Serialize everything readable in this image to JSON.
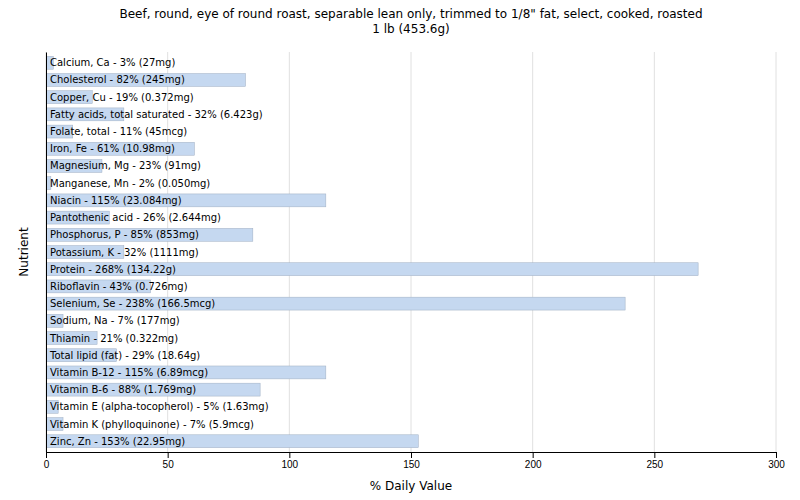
{
  "chart_data": {
    "type": "bar",
    "orientation": "horizontal",
    "title": "Beef, round, eye of round roast, separable lean only, trimmed to 1/8\" fat, select, cooked, roasted\n1 lb (453.6g)",
    "x_label": "% Daily Value",
    "y_label": "Nutrient",
    "categories": [
      "Calcium, Ca - 3% (27mg)",
      "Cholesterol - 82% (245mg)",
      "Copper, Cu - 19% (0.372mg)",
      "Fatty acids, total saturated - 32% (6.423g)",
      "Folate, total - 11% (45mcg)",
      "Iron, Fe - 61% (10.98mg)",
      "Magnesium, Mg - 23% (91mg)",
      "Manganese, Mn - 2% (0.050mg)",
      "Niacin - 115% (23.084mg)",
      "Pantothenic acid - 26% (2.644mg)",
      "Phosphorus, P - 85% (853mg)",
      "Potassium, K - 32% (1111mg)",
      "Protein - 268% (134.22g)",
      "Riboflavin - 43% (0.726mg)",
      "Selenium, Se - 238% (166.5mcg)",
      "Sodium, Na - 7% (177mg)",
      "Thiamin - 21% (0.322mg)",
      "Total lipid (fat) - 29% (18.64g)",
      "Vitamin B-12 - 115% (6.89mcg)",
      "Vitamin B-6 - 88% (1.769mg)",
      "Vitamin E (alpha-tocopherol) - 5% (1.63mg)",
      "Vitamin K (phylloquinone) - 7% (5.9mcg)",
      "Zinc, Zn - 153% (22.95mg)"
    ],
    "values": [
      3,
      82,
      19,
      32,
      11,
      61,
      23,
      2,
      115,
      26,
      85,
      32,
      268,
      43,
      238,
      7,
      21,
      29,
      115,
      88,
      5,
      7,
      153
    ],
    "color": "#c5d8f0",
    "xlim": [
      0,
      300
    ],
    "xticks": [
      0,
      50,
      100,
      150,
      200,
      250,
      300
    ],
    "grid": true,
    "tick_labels": "x"
  }
}
